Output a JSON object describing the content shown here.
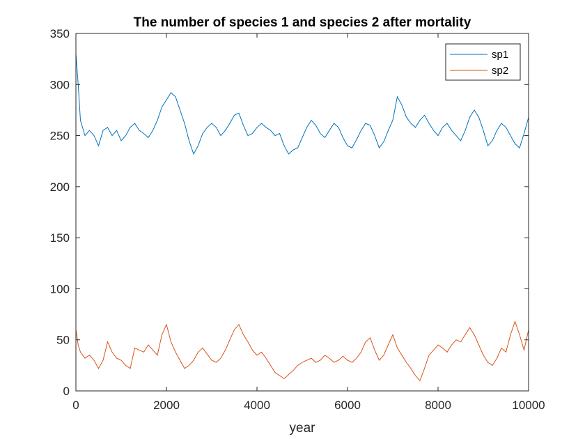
{
  "chart_data": {
    "type": "line",
    "title": "The number of species 1 and species 2 after mortality",
    "xlabel": "year",
    "ylabel": "",
    "xlim": [
      0,
      10000
    ],
    "ylim": [
      0,
      350
    ],
    "xticks": [
      0,
      2000,
      4000,
      6000,
      8000,
      10000
    ],
    "yticks": [
      0,
      50,
      100,
      150,
      200,
      250,
      300,
      350
    ],
    "grid": false,
    "legend_position": "top-right",
    "series": [
      {
        "name": "sp1",
        "color": "#0072BD",
        "x": [
          0,
          50,
          100,
          200,
          300,
          400,
          500,
          600,
          700,
          800,
          900,
          1000,
          1100,
          1200,
          1300,
          1400,
          1500,
          1600,
          1700,
          1800,
          1900,
          2000,
          2100,
          2200,
          2300,
          2400,
          2500,
          2600,
          2700,
          2800,
          2900,
          3000,
          3100,
          3200,
          3300,
          3400,
          3500,
          3600,
          3700,
          3800,
          3900,
          4000,
          4100,
          4200,
          4300,
          4400,
          4500,
          4600,
          4700,
          4800,
          4900,
          5000,
          5100,
          5200,
          5300,
          5400,
          5500,
          5600,
          5700,
          5800,
          5900,
          6000,
          6100,
          6200,
          6300,
          6400,
          6500,
          6600,
          6700,
          6800,
          6900,
          7000,
          7100,
          7200,
          7300,
          7400,
          7500,
          7600,
          7700,
          7800,
          7900,
          8000,
          8100,
          8200,
          8300,
          8400,
          8500,
          8600,
          8700,
          8800,
          8900,
          9000,
          9100,
          9200,
          9300,
          9400,
          9500,
          9600,
          9700,
          9800,
          9900,
          10000
        ],
        "values": [
          330,
          300,
          265,
          250,
          255,
          250,
          240,
          255,
          258,
          250,
          255,
          245,
          250,
          258,
          262,
          255,
          252,
          248,
          255,
          265,
          278,
          285,
          292,
          288,
          275,
          262,
          245,
          232,
          240,
          252,
          258,
          262,
          258,
          250,
          255,
          262,
          270,
          272,
          260,
          250,
          252,
          258,
          262,
          258,
          255,
          250,
          252,
          240,
          232,
          236,
          238,
          248,
          258,
          265,
          260,
          252,
          248,
          255,
          262,
          258,
          248,
          240,
          238,
          246,
          255,
          262,
          260,
          250,
          238,
          244,
          255,
          265,
          288,
          280,
          268,
          262,
          258,
          265,
          270,
          262,
          255,
          250,
          258,
          262,
          255,
          250,
          245,
          255,
          268,
          275,
          268,
          255,
          240,
          245,
          255,
          262,
          258,
          250,
          242,
          238,
          252,
          268
        ]
      },
      {
        "name": "sp2",
        "color": "#D95319",
        "x": [
          0,
          50,
          100,
          200,
          300,
          400,
          500,
          600,
          700,
          800,
          900,
          1000,
          1100,
          1200,
          1300,
          1400,
          1500,
          1600,
          1700,
          1800,
          1900,
          2000,
          2100,
          2200,
          2300,
          2400,
          2500,
          2600,
          2700,
          2800,
          2900,
          3000,
          3100,
          3200,
          3300,
          3400,
          3500,
          3600,
          3700,
          3800,
          3900,
          4000,
          4100,
          4200,
          4300,
          4400,
          4500,
          4600,
          4700,
          4800,
          4900,
          5000,
          5100,
          5200,
          5300,
          5400,
          5500,
          5600,
          5700,
          5800,
          5900,
          6000,
          6100,
          6200,
          6300,
          6400,
          6500,
          6600,
          6700,
          6800,
          6900,
          7000,
          7100,
          7200,
          7300,
          7400,
          7500,
          7600,
          7700,
          7800,
          7900,
          8000,
          8100,
          8200,
          8300,
          8400,
          8500,
          8600,
          8700,
          8800,
          8900,
          9000,
          9100,
          9200,
          9300,
          9400,
          9500,
          9600,
          9700,
          9800,
          9900,
          10000
        ],
        "values": [
          60,
          45,
          38,
          32,
          35,
          30,
          22,
          30,
          48,
          38,
          32,
          30,
          25,
          22,
          42,
          40,
          38,
          45,
          40,
          35,
          55,
          65,
          48,
          38,
          30,
          22,
          25,
          30,
          38,
          42,
          36,
          30,
          28,
          32,
          40,
          50,
          60,
          65,
          55,
          48,
          40,
          35,
          38,
          32,
          25,
          18,
          15,
          12,
          16,
          20,
          25,
          28,
          30,
          32,
          28,
          30,
          35,
          32,
          28,
          30,
          34,
          30,
          28,
          32,
          38,
          48,
          52,
          40,
          30,
          35,
          45,
          55,
          42,
          35,
          28,
          22,
          15,
          10,
          22,
          35,
          40,
          45,
          42,
          38,
          45,
          50,
          48,
          55,
          62,
          55,
          45,
          35,
          28,
          25,
          32,
          42,
          38,
          55,
          68,
          55,
          40,
          60
        ]
      }
    ]
  }
}
